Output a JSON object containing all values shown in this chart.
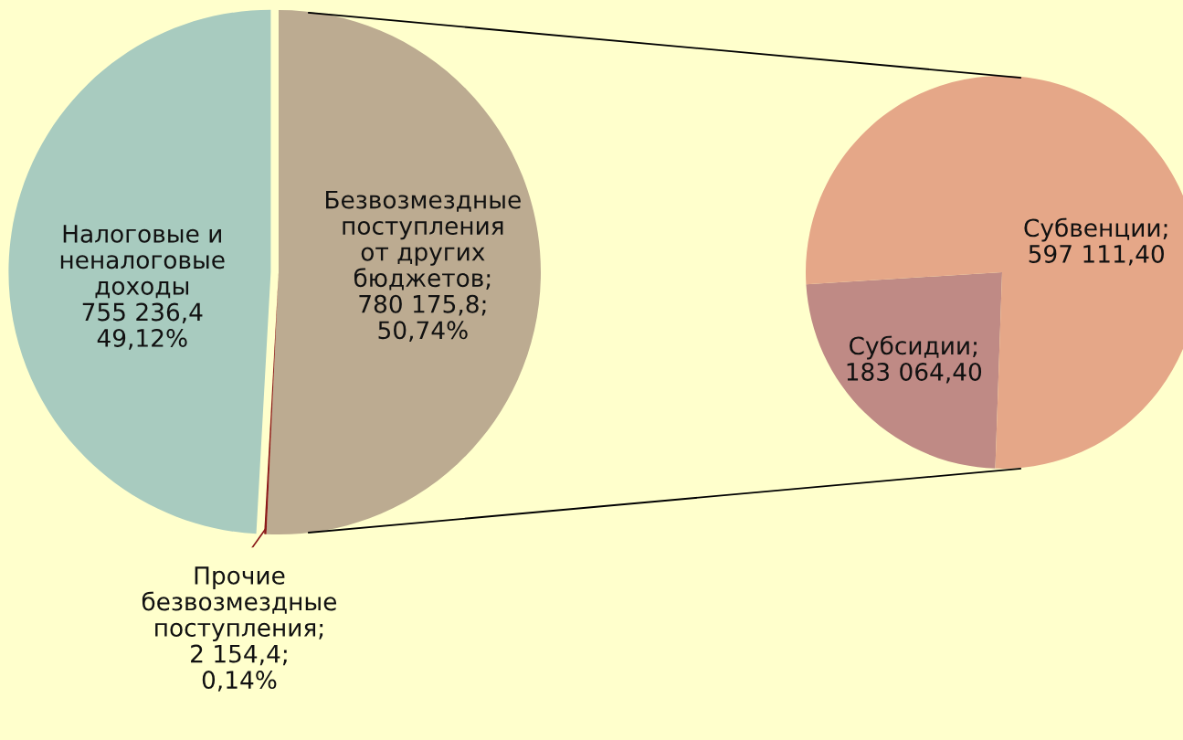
{
  "chart_data": [
    {
      "type": "pie",
      "categories": [
        "Безвозмездные\nпоступления\nот других\nбюджетов",
        "Прочие\nбезвозмездные\nпоступления",
        "Налоговые и\nненалоговые\nдоходы"
      ],
      "values": [
        780175.8,
        2154.4,
        755236.4
      ],
      "colors": [
        "#bcab91",
        "#8b1a1a",
        "#a8cbbf"
      ],
      "value_labels": [
        ";\n780 175,8;\n50,74%",
        ";\n2 154,4;\n0,14%",
        "\n755 236,4\n49,12%"
      ]
    },
    {
      "type": "pie",
      "categories": [
        "Субсидии",
        "Субвенции"
      ],
      "values": [
        183064.4,
        597111.4
      ],
      "colors": [
        "#bf8a85",
        "#e5a788"
      ],
      "value_labels": [
        ";\n183 064,40",
        ";\n597 111,40"
      ]
    }
  ]
}
